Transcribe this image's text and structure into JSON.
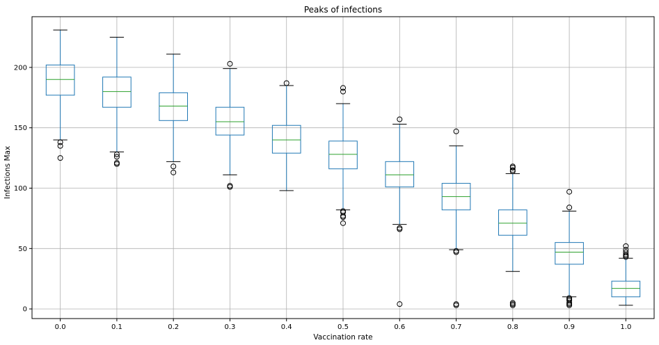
{
  "chart_data": {
    "type": "boxplot",
    "title": "Peaks of infections",
    "xlabel": "Vaccination rate",
    "ylabel": "Infections Max",
    "ylim": [
      -8,
      242
    ],
    "yticks": [
      0,
      50,
      100,
      150,
      200
    ],
    "categories": [
      "0.0",
      "0.1",
      "0.2",
      "0.3",
      "0.4",
      "0.5",
      "0.6",
      "0.7",
      "0.8",
      "0.9",
      "1.0"
    ],
    "grid": true,
    "colors": {
      "box": "#1f77b4",
      "median": "#2ca02c",
      "whisker": "#1f77b4",
      "cap": "#000000",
      "grid": "#b0b0b0",
      "flier": "#000000"
    },
    "boxes": [
      {
        "whislo": 140,
        "q1": 177,
        "med": 190,
        "q3": 202,
        "whishi": 231,
        "fliers": [
          138,
          135,
          125
        ]
      },
      {
        "whislo": 130,
        "q1": 167,
        "med": 180,
        "q3": 192,
        "whishi": 225,
        "fliers": [
          128,
          126,
          121,
          120
        ]
      },
      {
        "whislo": 122,
        "q1": 156,
        "med": 168,
        "q3": 179,
        "whishi": 211,
        "fliers": [
          118,
          113
        ]
      },
      {
        "whislo": 111,
        "q1": 144,
        "med": 155,
        "q3": 167,
        "whishi": 199,
        "fliers": [
          203,
          102,
          101
        ]
      },
      {
        "whislo": 98,
        "q1": 129,
        "med": 140,
        "q3": 152,
        "whishi": 185,
        "fliers": [
          187
        ]
      },
      {
        "whislo": 82,
        "q1": 116,
        "med": 128,
        "q3": 139,
        "whishi": 170,
        "fliers": [
          183,
          180,
          81,
          80,
          77,
          76,
          71
        ]
      },
      {
        "whislo": 70,
        "q1": 101,
        "med": 111,
        "q3": 122,
        "whishi": 153,
        "fliers": [
          157,
          67,
          66,
          4
        ]
      },
      {
        "whislo": 49,
        "q1": 82,
        "med": 93,
        "q3": 104,
        "whishi": 135,
        "fliers": [
          147,
          48,
          47,
          4,
          3
        ]
      },
      {
        "whislo": 31,
        "q1": 61,
        "med": 71,
        "q3": 82,
        "whishi": 112,
        "fliers": [
          118,
          117,
          115,
          114,
          5,
          4,
          3
        ]
      },
      {
        "whislo": 10,
        "q1": 37,
        "med": 47,
        "q3": 55,
        "whishi": 81,
        "fliers": [
          97,
          84,
          9,
          8,
          7,
          5,
          4,
          3
        ]
      },
      {
        "whislo": 3,
        "q1": 10,
        "med": 17,
        "q3": 23,
        "whishi": 42,
        "fliers": [
          52,
          49,
          47,
          45,
          44,
          43
        ]
      }
    ]
  }
}
